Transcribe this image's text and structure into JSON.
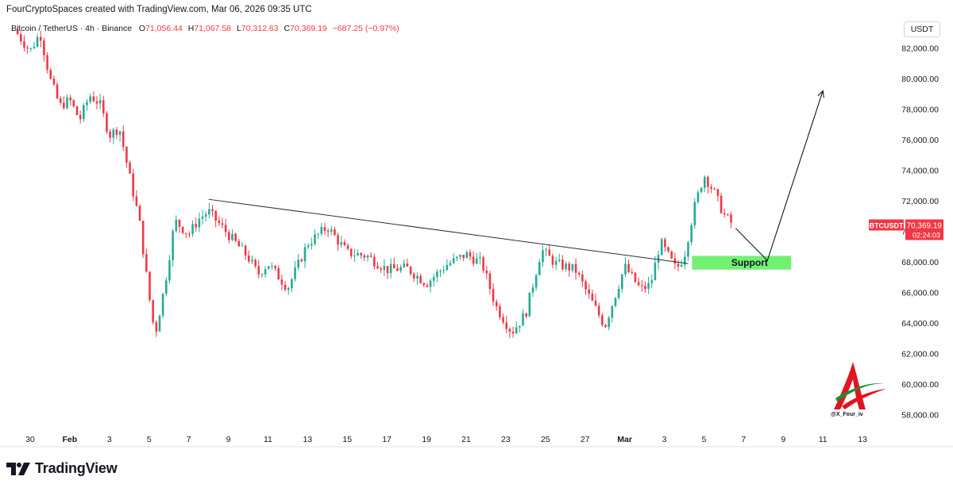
{
  "header": {
    "caption": "FourCryptoSpaces created with TradingView.com, Mar 06, 2026 09:35 UTC",
    "symbol": "Bitcoin / TetherUS · 4h · Binance",
    "ohlc": {
      "open_label": "O",
      "open": "71,056.44",
      "high_label": "H",
      "high": "71,067.58",
      "low_label": "L",
      "low": "70,312.63",
      "close_label": "C",
      "close": "70,369.19",
      "change": "−687.25 (−0.97%)"
    },
    "currency": "USDT"
  },
  "price_label": {
    "symbol": "BTCUSDT",
    "price": "70,369.19",
    "countdown": "02:24:03"
  },
  "footer": {
    "logo_text": "TradingView"
  },
  "watermark": {
    "handle": "@X_Four_iv"
  },
  "colors": {
    "up": "#22ab94",
    "down": "#f23645",
    "support_fill": "#72f072",
    "text": "#131722",
    "grid_text": "#131722",
    "line": "#2a2e39"
  },
  "chart_data": {
    "type": "candlestick",
    "timeframe": "4h",
    "ylim": [
      57000,
      84000
    ],
    "y_ticks": [
      58000,
      60000,
      62000,
      64000,
      66000,
      68000,
      70000,
      72000,
      74000,
      76000,
      78000,
      80000,
      82000
    ],
    "y_tick_labels": [
      "58,000.00",
      "60,000.00",
      "62,000.00",
      "64,000.00",
      "66,000.00",
      "68,000.00",
      "70,000.00",
      "72,000.00",
      "74,000.00",
      "76,000.00",
      "78,000.00",
      "80,000.00",
      "82,000.00"
    ],
    "x_ticks": [
      "30",
      "Feb",
      "3",
      "5",
      "7",
      "9",
      "11",
      "13",
      "15",
      "17",
      "19",
      "21",
      "23",
      "25",
      "27",
      "Mar",
      "3",
      "5",
      "7",
      "9",
      "11",
      "13"
    ],
    "x_tick_days": [
      0,
      2,
      4,
      6,
      8,
      10,
      12,
      14,
      16,
      18,
      20,
      22,
      24,
      26,
      28,
      30,
      32,
      34,
      36,
      38,
      40,
      42
    ],
    "x_domain_days": [
      -1.2,
      44.0
    ],
    "day_origin_label": "30",
    "candles_per_day": 6,
    "anchors": [
      {
        "day": -0.8,
        "price": 83200
      },
      {
        "day": 0.0,
        "price": 81800
      },
      {
        "day": 0.5,
        "price": 83000
      },
      {
        "day": 1.0,
        "price": 80000
      },
      {
        "day": 1.5,
        "price": 78200
      },
      {
        "day": 2.0,
        "price": 78600
      },
      {
        "day": 2.5,
        "price": 77300
      },
      {
        "day": 3.0,
        "price": 78900
      },
      {
        "day": 3.5,
        "price": 78400
      },
      {
        "day": 4.0,
        "price": 76300
      },
      {
        "day": 4.5,
        "price": 76800
      },
      {
        "day": 5.0,
        "price": 73700
      },
      {
        "day": 5.5,
        "price": 70800
      },
      {
        "day": 6.0,
        "price": 65800
      },
      {
        "day": 6.3,
        "price": 63200
      },
      {
        "day": 6.8,
        "price": 66500
      },
      {
        "day": 7.3,
        "price": 70700
      },
      {
        "day": 8.0,
        "price": 69800
      },
      {
        "day": 8.5,
        "price": 70800
      },
      {
        "day": 9.0,
        "price": 71300
      },
      {
        "day": 10.0,
        "price": 69800
      },
      {
        "day": 11.0,
        "price": 68300
      },
      {
        "day": 11.5,
        "price": 67200
      },
      {
        "day": 12.0,
        "price": 67900
      },
      {
        "day": 13.0,
        "price": 66300
      },
      {
        "day": 14.0,
        "price": 69200
      },
      {
        "day": 15.0,
        "price": 70300
      },
      {
        "day": 16.0,
        "price": 68600
      },
      {
        "day": 17.0,
        "price": 68400
      },
      {
        "day": 18.0,
        "price": 67500
      },
      {
        "day": 19.0,
        "price": 67600
      },
      {
        "day": 20.0,
        "price": 66600
      },
      {
        "day": 21.0,
        "price": 67800
      },
      {
        "day": 22.0,
        "price": 68500
      },
      {
        "day": 22.8,
        "price": 67900
      },
      {
        "day": 23.5,
        "price": 65100
      },
      {
        "day": 24.3,
        "price": 63400
      },
      {
        "day": 25.0,
        "price": 64600
      },
      {
        "day": 25.8,
        "price": 68800
      },
      {
        "day": 26.5,
        "price": 67900
      },
      {
        "day": 27.5,
        "price": 67500
      },
      {
        "day": 28.3,
        "price": 65500
      },
      {
        "day": 29.0,
        "price": 63800
      },
      {
        "day": 30.0,
        "price": 67700
      },
      {
        "day": 30.8,
        "price": 66200
      },
      {
        "day": 31.3,
        "price": 66500
      },
      {
        "day": 31.8,
        "price": 69300
      },
      {
        "day": 32.6,
        "price": 67500
      },
      {
        "day": 33.0,
        "price": 68400
      },
      {
        "day": 33.5,
        "price": 71500
      },
      {
        "day": 34.0,
        "price": 73700
      },
      {
        "day": 34.5,
        "price": 72600
      },
      {
        "day": 35.0,
        "price": 71100
      },
      {
        "day": 35.5,
        "price": 70369
      }
    ],
    "trendline": {
      "from": {
        "day": 9.0,
        "price": 72100
      },
      "to": {
        "day": 33.2,
        "price": 67900
      }
    },
    "support_zone": {
      "label": "Support",
      "day_from": 33.4,
      "day_to": 38.4,
      "price_low": 67500,
      "price_high": 68400
    },
    "projection_path": [
      {
        "day": 35.6,
        "price": 70200
      },
      {
        "day": 37.2,
        "price": 68100
      },
      {
        "day": 40.0,
        "price": 79200
      }
    ],
    "last_price": 70369.19
  }
}
